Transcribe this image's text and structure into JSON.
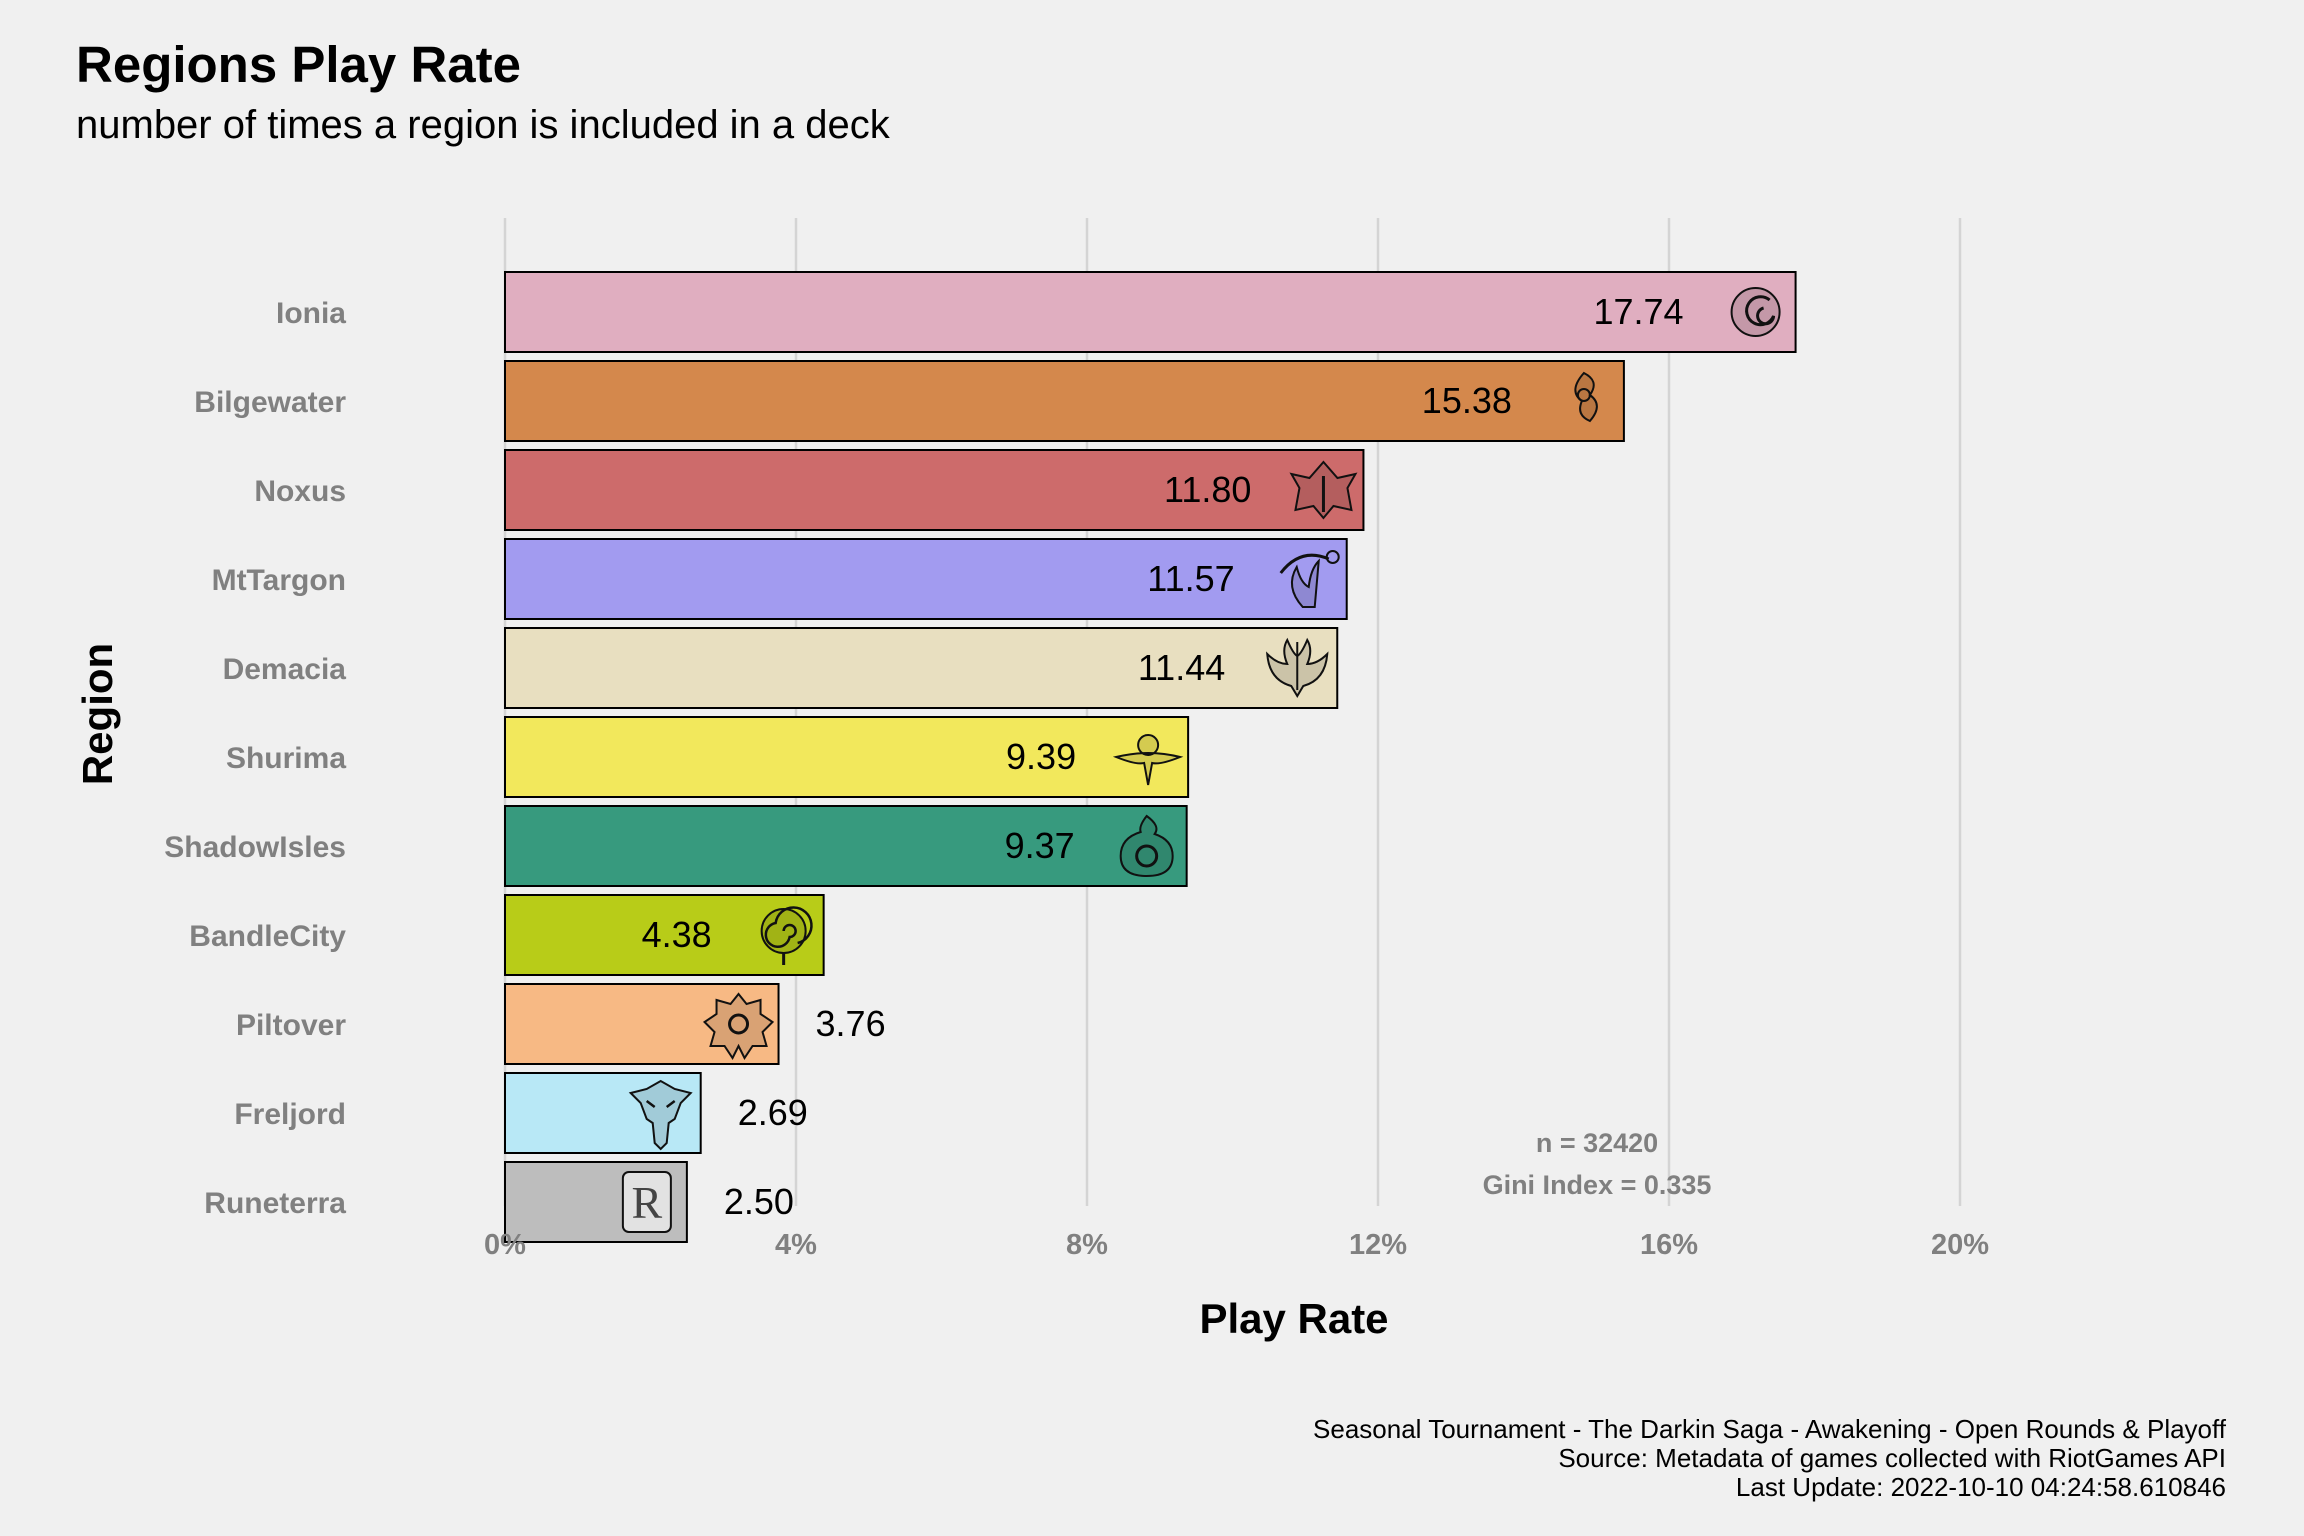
{
  "chart_data": {
    "type": "bar",
    "orientation": "horizontal",
    "title": "Regions Play Rate",
    "subtitle": "number of times a region is included in a deck",
    "xlabel": "Play Rate",
    "ylabel": "Region",
    "xlim": [
      0,
      20
    ],
    "x_ticks": [
      "0%",
      "4%",
      "8%",
      "12%",
      "16%",
      "20%"
    ],
    "x_tick_values": [
      0,
      4,
      8,
      12,
      16,
      20
    ],
    "grid": "vertical major",
    "legend": "none",
    "categories": [
      "Ionia",
      "Bilgewater",
      "Noxus",
      "MtTargon",
      "Demacia",
      "Shurima",
      "ShadowIsles",
      "BandleCity",
      "Piltover",
      "Freljord",
      "Runeterra"
    ],
    "values": [
      17.74,
      15.38,
      11.8,
      11.57,
      11.44,
      9.39,
      9.37,
      4.38,
      3.76,
      2.69,
      2.5
    ],
    "value_labels": [
      "17.74",
      "15.38",
      "11.80",
      "11.57",
      "11.44",
      "9.39",
      "9.37",
      "4.38",
      "3.76",
      "2.69",
      "2.50"
    ],
    "colors": [
      "#e0aec0",
      "#d4884c",
      "#cd6b6b",
      "#a29bf0",
      "#e8dfc0",
      "#f2e85c",
      "#379a7e",
      "#b8cc18",
      "#f7b984",
      "#b8e8f6",
      "#bdbdbd"
    ],
    "icons": [
      "ionia-icon",
      "bilgewater-icon",
      "noxus-icon",
      "mttargon-icon",
      "demacia-icon",
      "shurima-icon",
      "shadowisles-icon",
      "bandlecity-icon",
      "piltover-icon",
      "freljord-icon",
      "runeterra-icon"
    ],
    "annotations": [
      "n = 32420",
      "Gini Index = 0.335"
    ],
    "caption": [
      "Seasonal Tournament - The Darkin Saga - Awakening - Open Rounds & Playoff",
      "Source: Metadata of games collected with RiotGames API",
      "Last Update: 2022-10-10 04:24:58.610846"
    ]
  }
}
